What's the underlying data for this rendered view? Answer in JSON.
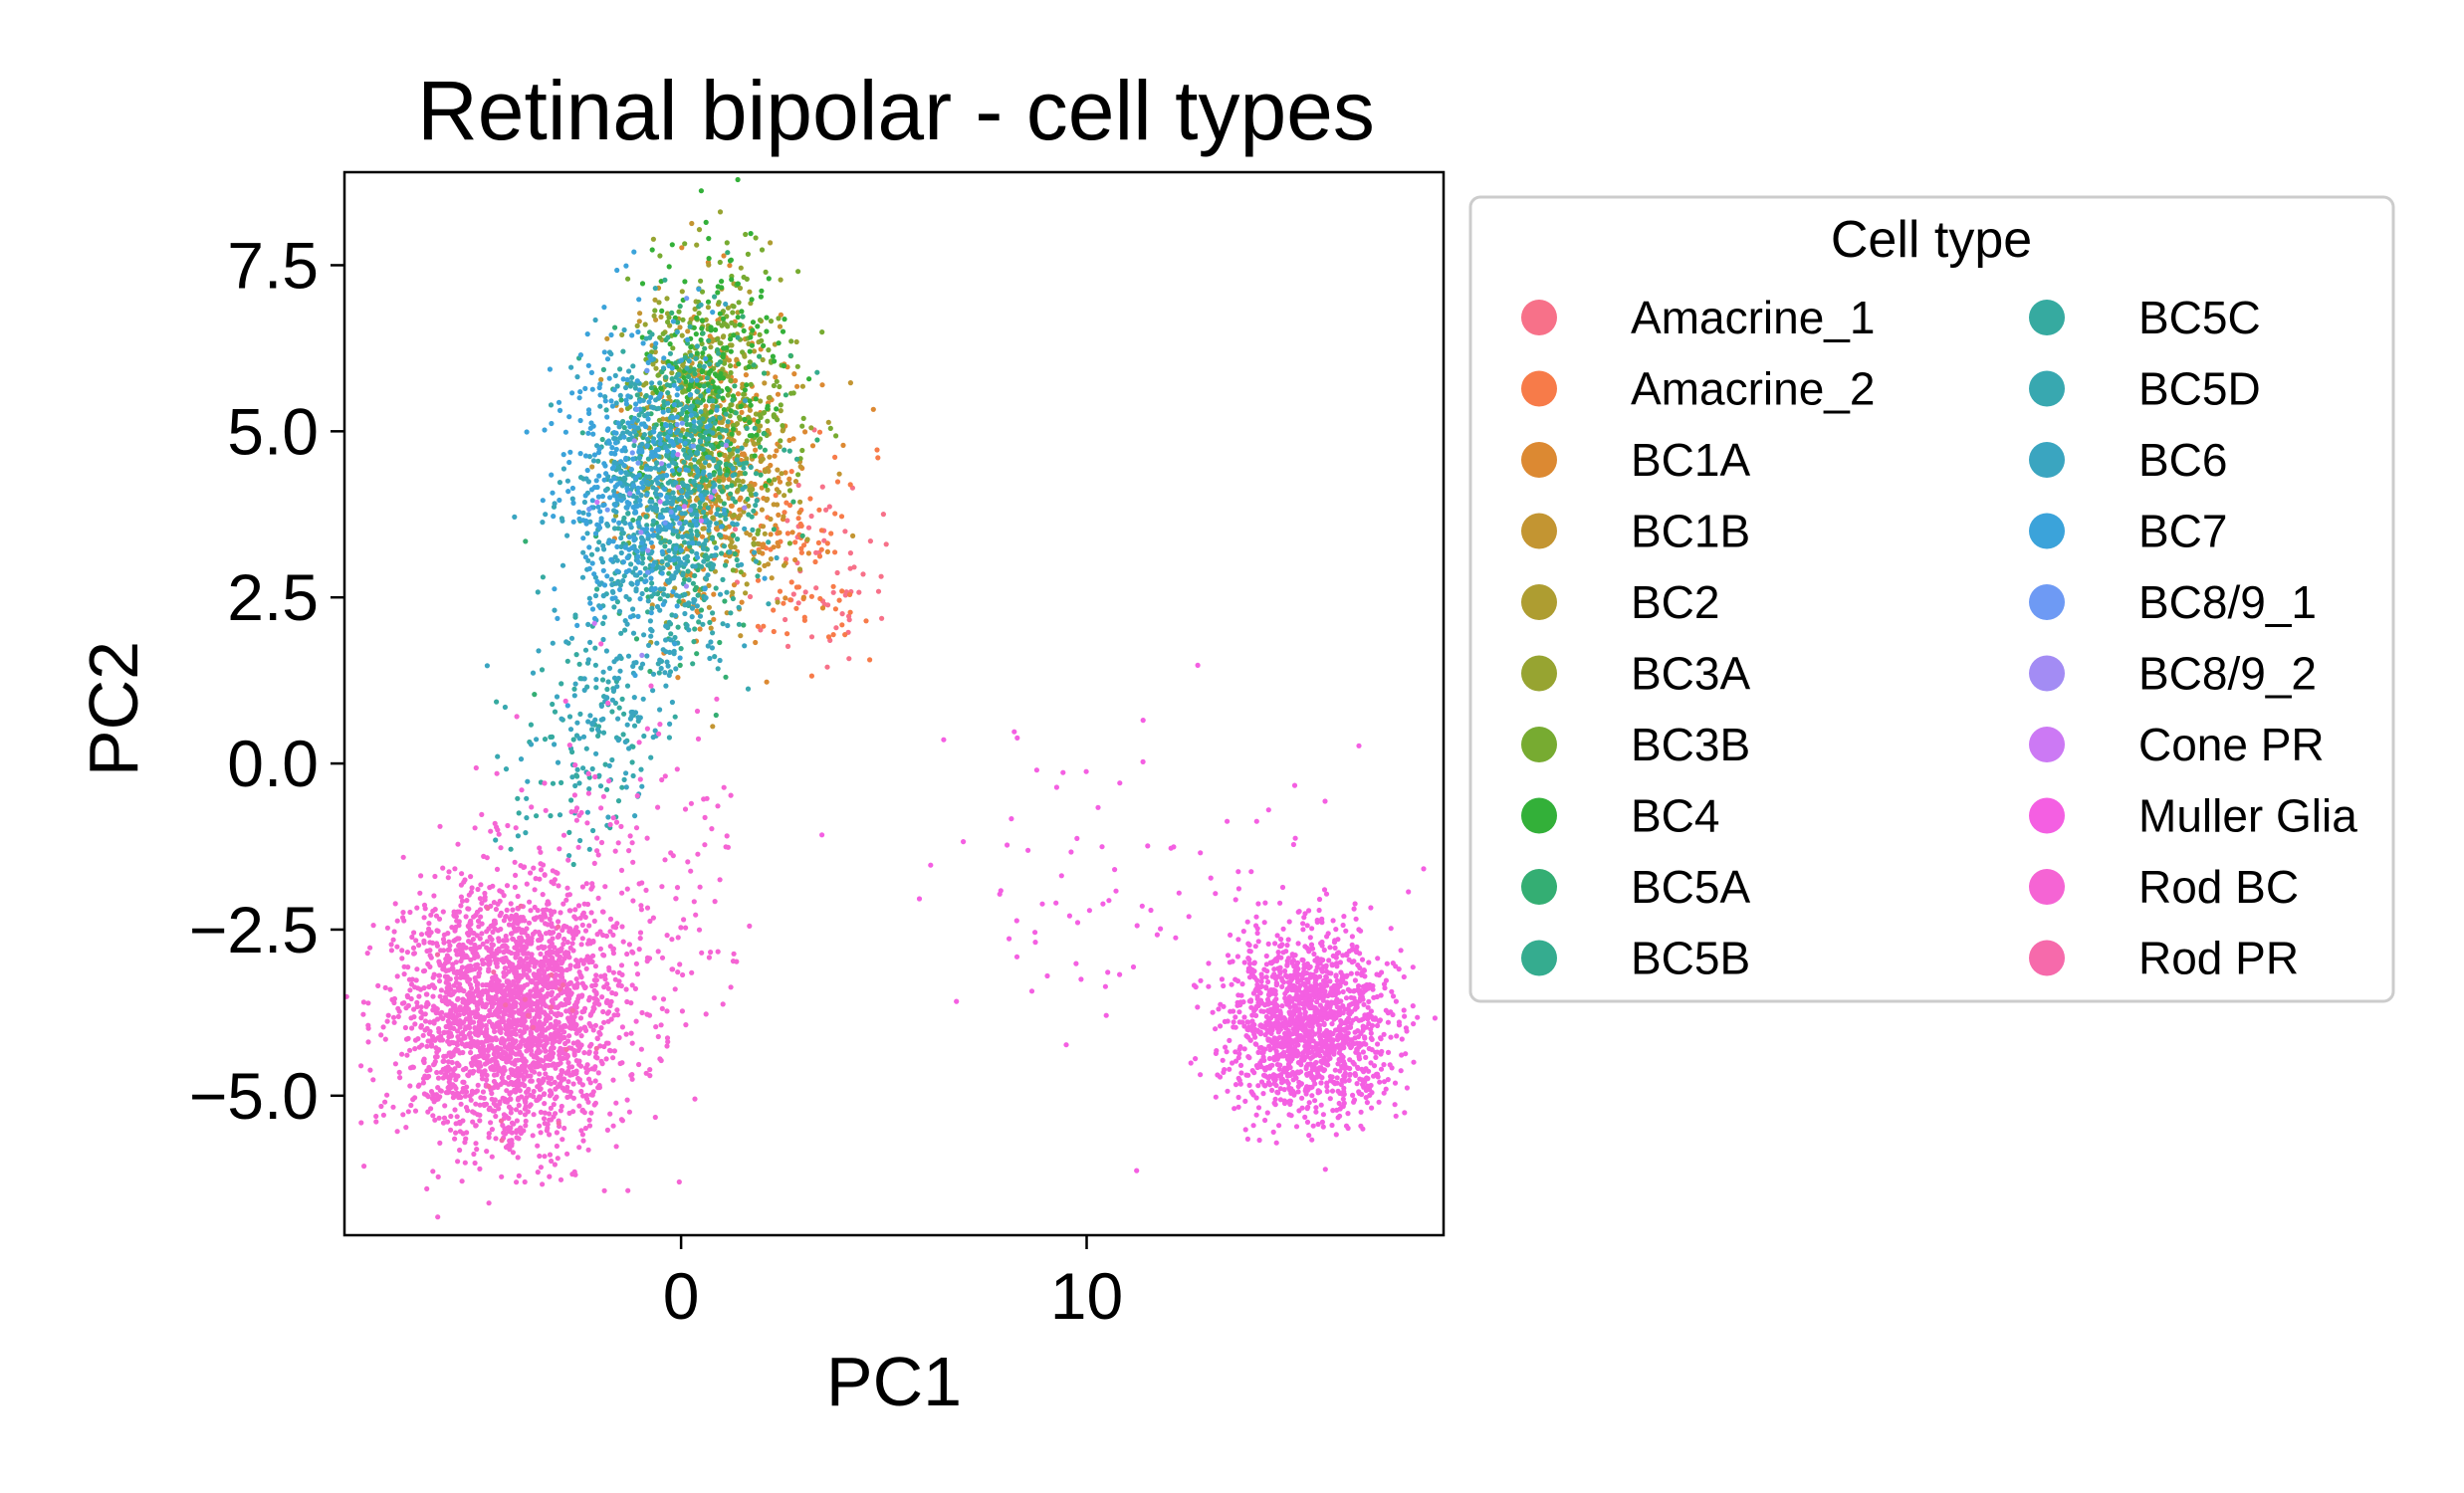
{
  "chart_data": {
    "type": "scatter",
    "title": "Retinal bipolar - cell types",
    "xlabel": "PC1",
    "ylabel": "PC2",
    "xlim": [
      -8.3,
      18.8
    ],
    "ylim": [
      -7.1,
      8.9
    ],
    "xticks": [
      0,
      10
    ],
    "xtick_labels": [
      "0",
      "10"
    ],
    "yticks": [
      -5.0,
      -2.5,
      0.0,
      2.5,
      5.0,
      7.5
    ],
    "ytick_labels": [
      "−5.0",
      "−2.5",
      "0.0",
      "2.5",
      "5.0",
      "7.5"
    ],
    "grid": false,
    "legend": {
      "title": "Cell type",
      "placement": "outside-right",
      "columns": 2
    },
    "series": [
      {
        "name": "Amacrine_1",
        "color": "#f77189",
        "clusters": [
          {
            "cx": 3.3,
            "cy": 3.0,
            "sx": 0.9,
            "sy": 0.8,
            "n": 60
          }
        ]
      },
      {
        "name": "Amacrine_2",
        "color": "#f77b49",
        "clusters": [
          {
            "cx": 3.0,
            "cy": 3.2,
            "sx": 0.9,
            "sy": 0.9,
            "n": 80
          }
        ]
      },
      {
        "name": "BC1A",
        "color": "#dc8932",
        "clusters": [
          {
            "cx": 1.2,
            "cy": 4.4,
            "sx": 1.1,
            "sy": 1.2,
            "n": 260
          }
        ]
      },
      {
        "name": "BC1B",
        "color": "#c39532",
        "clusters": [
          {
            "cx": 1.0,
            "cy": 4.5,
            "sx": 1.1,
            "sy": 1.2,
            "n": 180
          }
        ]
      },
      {
        "name": "BC2",
        "color": "#ae9d31",
        "clusters": [
          {
            "cx": 0.8,
            "cy": 4.8,
            "sx": 1.0,
            "sy": 1.2,
            "n": 160
          }
        ]
      },
      {
        "name": "BC3A",
        "color": "#97a431",
        "clusters": [
          {
            "cx": 0.6,
            "cy": 5.2,
            "sx": 1.0,
            "sy": 1.1,
            "n": 200
          }
        ]
      },
      {
        "name": "BC3B",
        "color": "#77ab31",
        "clusters": [
          {
            "cx": 0.9,
            "cy": 5.6,
            "sx": 1.0,
            "sy": 1.0,
            "n": 240
          }
        ]
      },
      {
        "name": "BC4",
        "color": "#33b039",
        "clusters": [
          {
            "cx": 0.8,
            "cy": 5.8,
            "sx": 0.9,
            "sy": 0.9,
            "n": 200
          }
        ]
      },
      {
        "name": "BC5A",
        "color": "#34ae73",
        "clusters": [
          {
            "cx": 0.3,
            "cy": 4.4,
            "sx": 1.0,
            "sy": 1.2,
            "n": 170
          }
        ]
      },
      {
        "name": "BC5B",
        "color": "#35ac8f",
        "clusters": [
          {
            "cx": 0.2,
            "cy": 4.2,
            "sx": 1.0,
            "sy": 1.2,
            "n": 170
          }
        ]
      },
      {
        "name": "BC5C",
        "color": "#36aaa0",
        "clusters": [
          {
            "cx": -0.2,
            "cy": 4.0,
            "sx": 1.0,
            "sy": 1.2,
            "n": 190
          },
          {
            "cx": -2.5,
            "cy": 0.3,
            "sx": 0.9,
            "sy": 0.9,
            "n": 60
          }
        ]
      },
      {
        "name": "BC5D",
        "color": "#38a8b0",
        "clusters": [
          {
            "cx": -0.5,
            "cy": 3.8,
            "sx": 1.0,
            "sy": 1.2,
            "n": 200
          },
          {
            "cx": -2.3,
            "cy": 0.0,
            "sx": 0.9,
            "sy": 0.9,
            "n": 60
          }
        ]
      },
      {
        "name": "BC6",
        "color": "#3aa5c0",
        "clusters": [
          {
            "cx": -0.8,
            "cy": 3.6,
            "sx": 1.0,
            "sy": 1.2,
            "n": 320
          },
          {
            "cx": -1.6,
            "cy": 1.0,
            "sx": 1.0,
            "sy": 0.8,
            "n": 90
          }
        ]
      },
      {
        "name": "BC7",
        "color": "#3ba3da",
        "clusters": [
          {
            "cx": -1.3,
            "cy": 4.4,
            "sx": 0.9,
            "sy": 1.2,
            "n": 340
          }
        ]
      },
      {
        "name": "BC8/9_1",
        "color": "#6e9af4",
        "clusters": [
          {
            "cx": -1.0,
            "cy": 4.0,
            "sx": 0.9,
            "sy": 1.0,
            "n": 15
          }
        ]
      },
      {
        "name": "BC8/9_2",
        "color": "#a38cf4",
        "clusters": [
          {
            "cx": -0.7,
            "cy": 3.8,
            "sx": 0.9,
            "sy": 1.0,
            "n": 10
          }
        ]
      },
      {
        "name": "Cone PR",
        "color": "#cc79f4",
        "clusters": [
          {
            "cx": -0.5,
            "cy": 3.5,
            "sx": 0.9,
            "sy": 1.0,
            "n": 8
          }
        ]
      },
      {
        "name": "Muller Glia",
        "color": "#f45fe2",
        "clusters": [
          {
            "cx": 15.5,
            "cy": -3.9,
            "sx": 1.0,
            "sy": 0.65,
            "n": 1500
          },
          {
            "cx": 11.5,
            "cy": -2.0,
            "sx": 2.8,
            "sy": 1.4,
            "n": 90
          }
        ]
      },
      {
        "name": "Rod BC",
        "color": "#f564d4",
        "clusters": [
          {
            "cx": -4.3,
            "cy": -3.8,
            "sx": 1.35,
            "sy": 0.95,
            "n": 2400
          },
          {
            "cx": -1.5,
            "cy": -2.0,
            "sx": 1.5,
            "sy": 1.3,
            "n": 220
          }
        ]
      },
      {
        "name": "Rod PR",
        "color": "#f66aab",
        "clusters": [
          {
            "cx": -4.0,
            "cy": -3.6,
            "sx": 1.0,
            "sy": 0.8,
            "n": 20
          }
        ]
      }
    ]
  }
}
